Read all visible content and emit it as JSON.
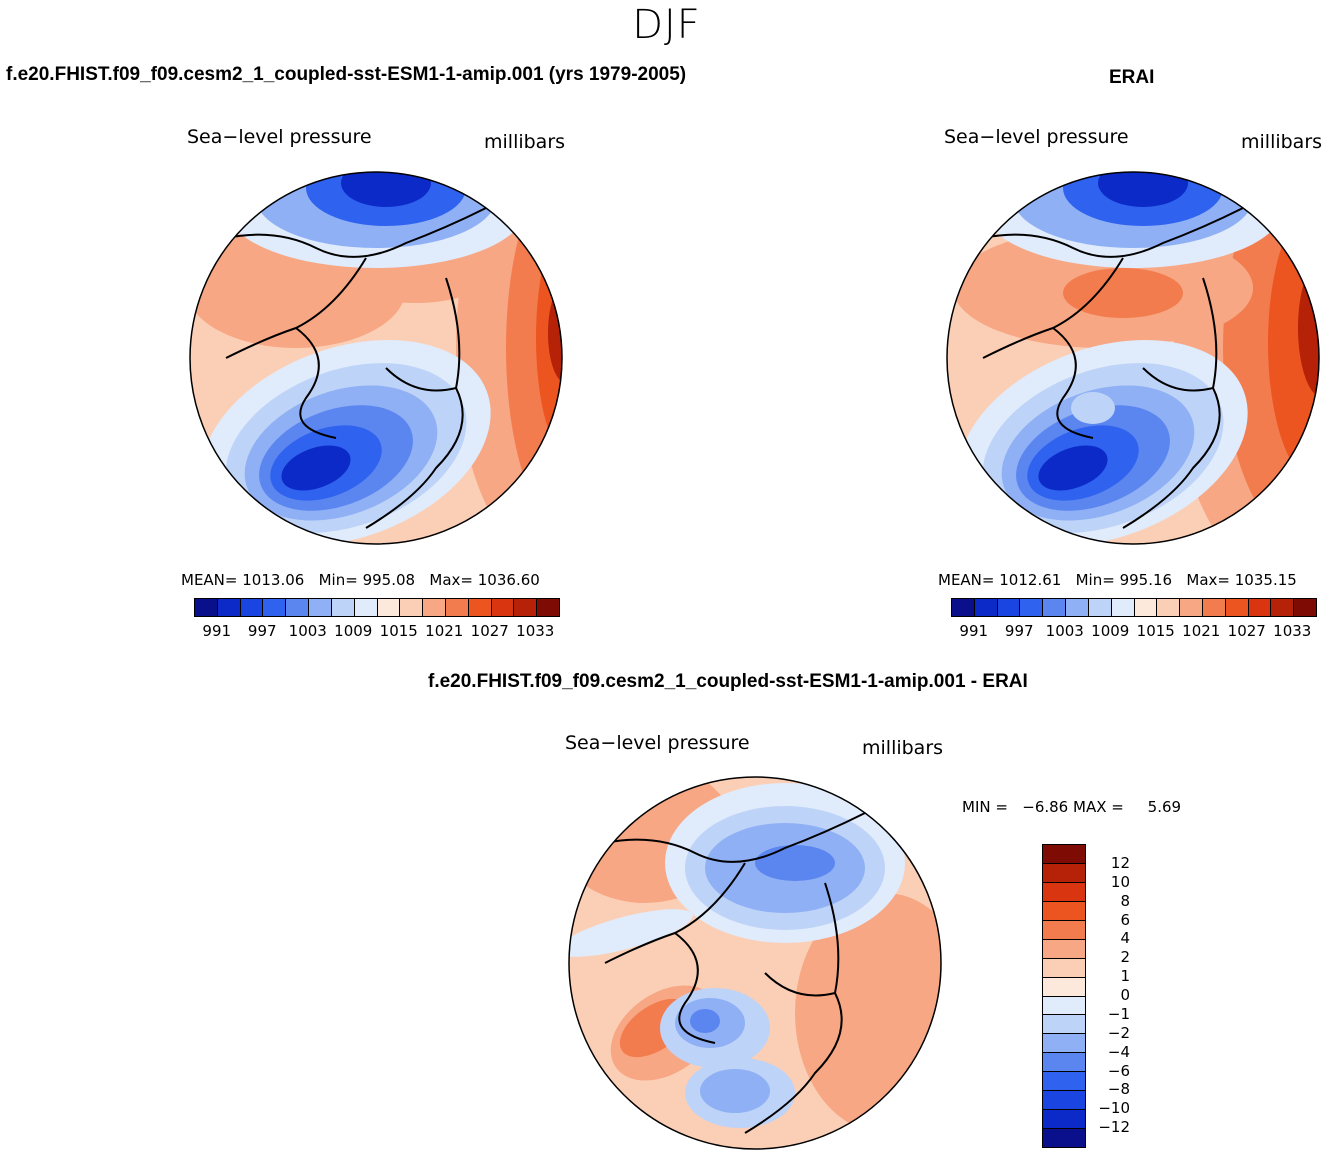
{
  "season": "DJF",
  "panels": {
    "model": {
      "title": "f.e20.FHIST.f09_f09.cesm2_1_coupled-sst-ESM1-1-amip.001 (yrs 1979-2005)",
      "variable": "Sea−level pressure",
      "units": "millibars",
      "stats": {
        "mean_label": "MEAN=",
        "mean": "1013.06",
        "min_label": "Min=",
        "min": "995.08",
        "max_label": "Max=",
        "max": "1036.60"
      }
    },
    "obs": {
      "title": "ERAI",
      "variable": "Sea−level pressure",
      "units": "millibars",
      "stats": {
        "mean_label": "MEAN=",
        "mean": "1012.61",
        "min_label": "Min=",
        "min": "995.16",
        "max_label": "Max=",
        "max": "1035.15"
      }
    },
    "diff": {
      "title": "f.e20.FHIST.f09_f09.cesm2_1_coupled-sst-ESM1-1-amip.001 - ERAI",
      "variable": "Sea−level pressure",
      "units": "millibars",
      "stats": {
        "min_label": "MIN =",
        "min": "−6.86",
        "max_label": "MAX =",
        "max": "5.69"
      }
    }
  },
  "colorbars": {
    "abs": {
      "ticks": [
        "991",
        "997",
        "1003",
        "1009",
        "1015",
        "1021",
        "1027",
        "1033"
      ],
      "colors": [
        "#0a0f8c",
        "#0c2ac8",
        "#1a45e0",
        "#2f62ee",
        "#5b86f0",
        "#8fb0f4",
        "#bed3f8",
        "#e0ebfb",
        "#fde9dc",
        "#fbcfb6",
        "#f7a784",
        "#f37c4f",
        "#ec5420",
        "#d93511",
        "#b52208",
        "#7e0b04"
      ]
    },
    "diff": {
      "ticks": [
        "12",
        "10",
        "8",
        "6",
        "4",
        "2",
        "1",
        "0",
        "−1",
        "−2",
        "−4",
        "−6",
        "−8",
        "−10",
        "−12"
      ],
      "colors": [
        "#7e0b04",
        "#b52208",
        "#d93511",
        "#ec5420",
        "#f37c4f",
        "#f7a784",
        "#fbcfb6",
        "#fde9dc",
        "#e0ebfb",
        "#bed3f8",
        "#8fb0f4",
        "#5b86f0",
        "#2f62ee",
        "#1a45e0",
        "#0c2ac8",
        "#0a0f8c"
      ]
    }
  },
  "legend_icon": "filled-contour-map"
}
